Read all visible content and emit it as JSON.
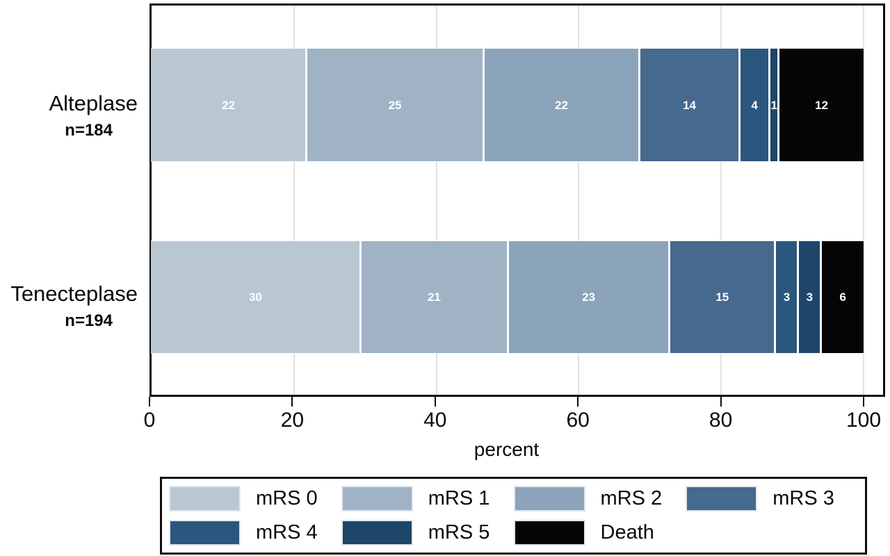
{
  "chart_data": {
    "type": "bar",
    "orientation": "horizontal",
    "stacked": true,
    "title": "",
    "xlabel": "percent",
    "x_ticks": [
      0,
      20,
      40,
      60,
      80,
      100
    ],
    "xlim": [
      0,
      100
    ],
    "grid": true,
    "categories": [
      "mRS 0",
      "mRS 1",
      "mRS 2",
      "mRS 3",
      "mRS 4",
      "mRS 5",
      "Death"
    ],
    "colors": [
      "#b9c7d3",
      "#9fb3c5",
      "#8ca4ba",
      "#46698e",
      "#2b577e",
      "#1d4669",
      "#050505"
    ],
    "rows": [
      {
        "label": "Alteplase",
        "n_label": "n=184",
        "values": [
          22,
          25,
          22,
          14,
          4,
          1,
          12
        ]
      },
      {
        "label": "Tenecteplase",
        "n_label": "n=194",
        "values": [
          30,
          21,
          23,
          15,
          3,
          3,
          6
        ]
      }
    ],
    "legend_position": "bottom",
    "legend_layout_rows": [
      [
        "mRS 0",
        "mRS 1",
        "mRS 2",
        "mRS 3"
      ],
      [
        "mRS 4",
        "mRS 5",
        "Death"
      ]
    ],
    "value_labels_shown": true,
    "value_label_color": "#ffffff"
  }
}
